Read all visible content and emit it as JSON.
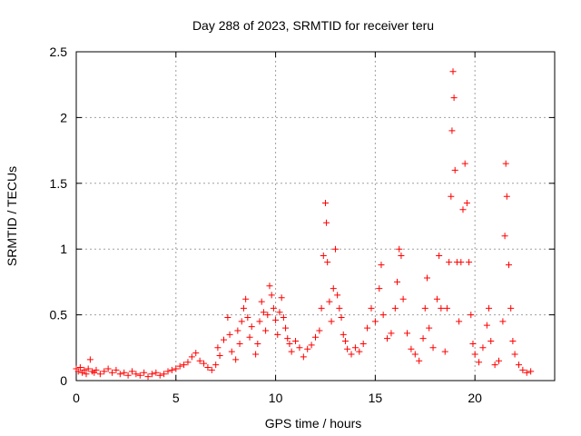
{
  "chart_data": {
    "type": "scatter",
    "title": "Day 288 of 2023, SRMTID for receiver teru",
    "xlabel": "GPS time / hours",
    "ylabel": "SRMTID / TECUs",
    "xlim": [
      0,
      24
    ],
    "ylim": [
      0,
      2.5
    ],
    "x_ticks": [
      0,
      5,
      10,
      15,
      20
    ],
    "y_ticks": [
      0,
      0.5,
      1,
      1.5,
      2,
      2.5
    ],
    "x_tick_labels": [
      "0",
      "5",
      "10",
      "15",
      "20"
    ],
    "y_tick_labels": [
      "0",
      "0.5",
      "1",
      "1.5",
      "2",
      "2.5"
    ],
    "grid": true,
    "marker": "+",
    "color": "#ff0000",
    "series": [
      {
        "name": "SRMTID",
        "points": [
          [
            0.0,
            0.09
          ],
          [
            0.1,
            0.07
          ],
          [
            0.2,
            0.1
          ],
          [
            0.3,
            0.06
          ],
          [
            0.4,
            0.08
          ],
          [
            0.5,
            0.05
          ],
          [
            0.6,
            0.09
          ],
          [
            0.7,
            0.16
          ],
          [
            0.8,
            0.07
          ],
          [
            0.9,
            0.06
          ],
          [
            1.0,
            0.08
          ],
          [
            1.2,
            0.05
          ],
          [
            1.4,
            0.07
          ],
          [
            1.6,
            0.09
          ],
          [
            1.8,
            0.06
          ],
          [
            2.0,
            0.08
          ],
          [
            2.2,
            0.05
          ],
          [
            2.4,
            0.06
          ],
          [
            2.6,
            0.04
          ],
          [
            2.8,
            0.07
          ],
          [
            3.0,
            0.05
          ],
          [
            3.2,
            0.04
          ],
          [
            3.4,
            0.06
          ],
          [
            3.6,
            0.03
          ],
          [
            3.8,
            0.05
          ],
          [
            4.0,
            0.06
          ],
          [
            4.2,
            0.04
          ],
          [
            4.4,
            0.05
          ],
          [
            4.6,
            0.07
          ],
          [
            4.8,
            0.08
          ],
          [
            5.0,
            0.09
          ],
          [
            5.2,
            0.11
          ],
          [
            5.4,
            0.12
          ],
          [
            5.6,
            0.14
          ],
          [
            5.8,
            0.18
          ],
          [
            6.0,
            0.21
          ],
          [
            6.2,
            0.15
          ],
          [
            6.4,
            0.13
          ],
          [
            6.6,
            0.1
          ],
          [
            6.8,
            0.08
          ],
          [
            7.0,
            0.12
          ],
          [
            7.1,
            0.25
          ],
          [
            7.2,
            0.19
          ],
          [
            7.4,
            0.31
          ],
          [
            7.6,
            0.48
          ],
          [
            7.7,
            0.35
          ],
          [
            7.8,
            0.22
          ],
          [
            8.0,
            0.16
          ],
          [
            8.1,
            0.38
          ],
          [
            8.2,
            0.28
          ],
          [
            8.3,
            0.45
          ],
          [
            8.4,
            0.55
          ],
          [
            8.5,
            0.62
          ],
          [
            8.6,
            0.48
          ],
          [
            8.7,
            0.33
          ],
          [
            8.8,
            0.41
          ],
          [
            9.0,
            0.2
          ],
          [
            9.1,
            0.28
          ],
          [
            9.2,
            0.45
          ],
          [
            9.3,
            0.6
          ],
          [
            9.4,
            0.52
          ],
          [
            9.5,
            0.38
          ],
          [
            9.6,
            0.5
          ],
          [
            9.7,
            0.72
          ],
          [
            9.8,
            0.65
          ],
          [
            9.9,
            0.55
          ],
          [
            10.0,
            0.46
          ],
          [
            10.1,
            0.35
          ],
          [
            10.2,
            0.52
          ],
          [
            10.3,
            0.63
          ],
          [
            10.4,
            0.48
          ],
          [
            10.5,
            0.4
          ],
          [
            10.6,
            0.32
          ],
          [
            10.7,
            0.28
          ],
          [
            10.8,
            0.22
          ],
          [
            11.0,
            0.3
          ],
          [
            11.2,
            0.25
          ],
          [
            11.4,
            0.18
          ],
          [
            11.6,
            0.24
          ],
          [
            11.8,
            0.27
          ],
          [
            12.0,
            0.33
          ],
          [
            12.2,
            0.38
          ],
          [
            12.3,
            0.55
          ],
          [
            12.4,
            0.95
          ],
          [
            12.5,
            1.35
          ],
          [
            12.55,
            1.2
          ],
          [
            12.6,
            0.9
          ],
          [
            12.7,
            0.6
          ],
          [
            12.8,
            0.45
          ],
          [
            12.9,
            0.7
          ],
          [
            13.0,
            1.0
          ],
          [
            13.1,
            0.65
          ],
          [
            13.2,
            0.55
          ],
          [
            13.3,
            0.48
          ],
          [
            13.4,
            0.35
          ],
          [
            13.5,
            0.3
          ],
          [
            13.6,
            0.24
          ],
          [
            13.8,
            0.2
          ],
          [
            14.0,
            0.25
          ],
          [
            14.2,
            0.22
          ],
          [
            14.4,
            0.28
          ],
          [
            14.6,
            0.4
          ],
          [
            14.8,
            0.55
          ],
          [
            15.0,
            0.45
          ],
          [
            15.2,
            0.7
          ],
          [
            15.3,
            0.88
          ],
          [
            15.4,
            0.5
          ],
          [
            15.6,
            0.32
          ],
          [
            15.8,
            0.36
          ],
          [
            16.0,
            0.55
          ],
          [
            16.1,
            0.75
          ],
          [
            16.2,
            1.0
          ],
          [
            16.3,
            0.95
          ],
          [
            16.4,
            0.62
          ],
          [
            16.6,
            0.36
          ],
          [
            16.8,
            0.24
          ],
          [
            17.0,
            0.2
          ],
          [
            17.2,
            0.15
          ],
          [
            17.4,
            0.32
          ],
          [
            17.5,
            0.55
          ],
          [
            17.6,
            0.78
          ],
          [
            17.7,
            0.4
          ],
          [
            17.9,
            0.25
          ],
          [
            18.1,
            0.62
          ],
          [
            18.2,
            0.95
          ],
          [
            18.3,
            0.55
          ],
          [
            18.5,
            0.22
          ],
          [
            18.6,
            0.55
          ],
          [
            18.7,
            0.9
          ],
          [
            18.8,
            1.4
          ],
          [
            18.85,
            1.9
          ],
          [
            18.9,
            2.35
          ],
          [
            18.95,
            2.15
          ],
          [
            19.0,
            1.6
          ],
          [
            19.1,
            0.9
          ],
          [
            19.2,
            0.45
          ],
          [
            19.3,
            0.9
          ],
          [
            19.4,
            1.3
          ],
          [
            19.5,
            1.65
          ],
          [
            19.6,
            1.35
          ],
          [
            19.7,
            0.9
          ],
          [
            19.8,
            0.5
          ],
          [
            19.9,
            0.28
          ],
          [
            20.0,
            0.2
          ],
          [
            20.2,
            0.14
          ],
          [
            20.4,
            0.25
          ],
          [
            20.6,
            0.42
          ],
          [
            20.7,
            0.55
          ],
          [
            20.8,
            0.3
          ],
          [
            21.0,
            0.12
          ],
          [
            21.2,
            0.15
          ],
          [
            21.4,
            0.45
          ],
          [
            21.5,
            1.1
          ],
          [
            21.55,
            1.65
          ],
          [
            21.6,
            1.4
          ],
          [
            21.7,
            0.88
          ],
          [
            21.8,
            0.55
          ],
          [
            21.9,
            0.3
          ],
          [
            22.0,
            0.2
          ],
          [
            22.2,
            0.12
          ],
          [
            22.4,
            0.08
          ],
          [
            22.6,
            0.06
          ],
          [
            22.8,
            0.07
          ]
        ]
      }
    ]
  }
}
